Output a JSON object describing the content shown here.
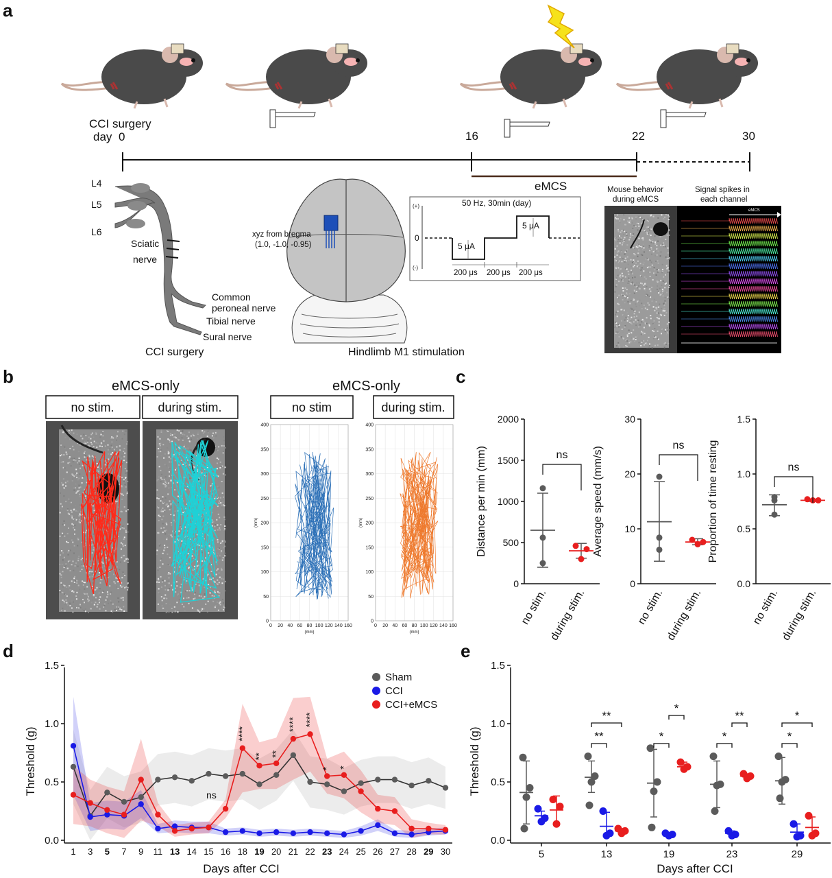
{
  "panel_a": {
    "letter": "a",
    "timeline": {
      "start_label_1": "CCI surgery",
      "start_label_2": "day",
      "days": [
        "0",
        "16",
        "22",
        "30"
      ],
      "emcs_label": "eMCS"
    },
    "nerve": {
      "roots": [
        "L4",
        "L5",
        "L6"
      ],
      "sciatic_1": "Sciatic",
      "sciatic_2": "nerve",
      "common_1": "Common",
      "common_2": "peroneal nerve",
      "tibial": "Tibial nerve",
      "sural": "Sural nerve",
      "caption": "CCI surgery"
    },
    "brain": {
      "coord_1": "xyz from bregma",
      "coord_2": "(1.0, -1.0, -0.95)",
      "caption": "Hindlimb M1 stimulation"
    },
    "pulse": {
      "title": "50 Hz, 30min (day)",
      "plus": "(+)",
      "zero": "0",
      "minus": "(-)",
      "amp_neg": "5 μA",
      "amp_pos": "5 μA",
      "durations": [
        "200 μs",
        "200 μs",
        "200 μs"
      ]
    },
    "behavior": {
      "title_1": "Mouse behavior",
      "title_2": "during eMCS",
      "spikes_1": "Signal spikes in",
      "spikes_2": "each channel",
      "emcs_tag": "eMCS"
    }
  },
  "panel_b": {
    "letter": "b",
    "left_title": "eMCS-only",
    "right_title": "eMCS-only",
    "photo_labels": [
      "no stim.",
      "during stim."
    ],
    "track_labels": [
      "no stim",
      "during stim."
    ],
    "track_axes": {
      "y_label": "(mm)",
      "x_label": "(mm)",
      "y_ticks": [
        "0",
        "50",
        "100",
        "150",
        "200",
        "250",
        "300",
        "350",
        "400"
      ],
      "x_ticks": [
        "0",
        "20",
        "40",
        "60",
        "80",
        "100",
        "120",
        "140",
        "160"
      ]
    },
    "colors": {
      "no_stim": "#2f72b8",
      "during_stim": "#ee7a2e",
      "photo_nostim": "#ff2a1a",
      "photo_stim": "#1fd1d6"
    }
  },
  "panel_c": {
    "letter": "c",
    "sig": "ns",
    "x_categories": [
      "no stim.",
      "during stim."
    ],
    "charts": [
      {
        "ylabel": "Distance per min (mm)",
        "ylim": [
          0,
          2000
        ],
        "yticks": [
          "0",
          "500",
          "1000",
          "1500",
          "2000"
        ],
        "no_stim": {
          "points": [
            1160,
            560,
            250
          ],
          "mean": 650,
          "sd": [
            200,
            1100
          ]
        },
        "during_stim": {
          "points": [
            460,
            420,
            300
          ],
          "mean": 400,
          "sd": [
            310,
            490
          ]
        }
      },
      {
        "ylabel": "Average speed (mm/s)",
        "ylim": [
          0,
          30
        ],
        "yticks": [
          "0",
          "10",
          "20",
          "30"
        ],
        "no_stim": {
          "points": [
            19.5,
            8.4,
            6.2
          ],
          "mean": 11.3,
          "sd": [
            4.1,
            18.6
          ]
        },
        "during_stim": {
          "points": [
            8.0,
            7.6,
            7.2
          ],
          "mean": 7.6,
          "sd": [
            7.1,
            8.2
          ]
        }
      },
      {
        "ylabel": "Proportion of time resting",
        "ylim": [
          0,
          1.5
        ],
        "yticks": [
          "0.0",
          "0.5",
          "1.0",
          "1.5"
        ],
        "no_stim": {
          "points": [
            0.79,
            0.76,
            0.63
          ],
          "mean": 0.72,
          "sd": [
            0.62,
            0.81
          ]
        },
        "during_stim": {
          "points": [
            0.77,
            0.76,
            0.76
          ],
          "mean": 0.76,
          "sd": [
            0.75,
            0.77
          ]
        }
      }
    ]
  },
  "panel_d": {
    "letter": "d",
    "ylabel": "Threshold (g)",
    "xlabel": "Days after CCI",
    "yticks": [
      "0.0",
      "0.5",
      "1.0",
      "1.5"
    ],
    "legend": [
      "Sham",
      "CCI",
      "CCI+eMCS"
    ],
    "ns_label": "ns"
  },
  "panel_e": {
    "letter": "e",
    "ylabel": "Threshold (g)",
    "xlabel": "Days after CCI",
    "yticks": [
      "0.0",
      "0.5",
      "1.0",
      "1.5"
    ],
    "days": [
      "5",
      "13",
      "19",
      "23",
      "29"
    ]
  },
  "chart_data": [
    {
      "type": "line",
      "panel": "d",
      "ylabel": "Threshold (g)",
      "xlabel": "Days after CCI",
      "ylim": [
        0,
        1.5
      ],
      "x": [
        1,
        3,
        5,
        7,
        9,
        11,
        13,
        14,
        15,
        16,
        18,
        19,
        20,
        21,
        22,
        23,
        24,
        25,
        26,
        27,
        28,
        29,
        30
      ],
      "x_bold": [
        5,
        13,
        19,
        23,
        29
      ],
      "legend_position": "top-right",
      "series": [
        {
          "name": "Sham",
          "color": "#5b5b5b",
          "values": [
            0.63,
            0.21,
            0.41,
            0.33,
            0.37,
            0.52,
            0.54,
            0.51,
            0.57,
            0.55,
            0.57,
            0.48,
            0.56,
            0.73,
            0.5,
            0.48,
            0.42,
            0.49,
            0.52,
            0.52,
            0.47,
            0.51,
            0.45
          ],
          "band": [
            0.32,
            0.22,
            0.22,
            0.22,
            0.22,
            0.22,
            0.22,
            0.22,
            0.22,
            0.22,
            0.22,
            0.22,
            0.22,
            0.22,
            0.22,
            0.22,
            0.2,
            0.2,
            0.2,
            0.2,
            0.2,
            0.2,
            0.18
          ]
        },
        {
          "name": "CCI",
          "color": "#1a1ae6",
          "values": [
            0.81,
            0.2,
            0.22,
            0.21,
            0.31,
            0.1,
            0.12,
            0.11,
            0.11,
            0.07,
            0.08,
            0.06,
            0.07,
            0.06,
            0.07,
            0.06,
            0.05,
            0.08,
            0.13,
            0.06,
            0.05,
            0.07,
            0.08
          ],
          "band": [
            0.42,
            0.12,
            0.12,
            0.12,
            0.12,
            0.04,
            0.05,
            0.05,
            0.05,
            0.03,
            0.03,
            0.03,
            0.03,
            0.03,
            0.03,
            0.03,
            0.03,
            0.04,
            0.05,
            0.03,
            0.03,
            0.03,
            0.03
          ]
        },
        {
          "name": "CCI+eMCS",
          "color": "#e81e1e",
          "values": [
            0.39,
            0.32,
            0.26,
            0.22,
            0.52,
            0.22,
            0.08,
            0.1,
            0.11,
            0.27,
            0.79,
            0.64,
            0.66,
            0.87,
            0.91,
            0.55,
            0.56,
            0.42,
            0.27,
            0.25,
            0.1,
            0.1,
            0.09
          ],
          "band": [
            0.25,
            0.2,
            0.2,
            0.2,
            0.35,
            0.1,
            0.05,
            0.05,
            0.05,
            0.08,
            0.38,
            0.2,
            0.22,
            0.35,
            0.32,
            0.15,
            0.2,
            0.18,
            0.12,
            0.12,
            0.08,
            0.05,
            0.04
          ]
        }
      ],
      "annotations": [
        {
          "x": 18,
          "text": "****"
        },
        {
          "x": 19,
          "text": "**"
        },
        {
          "x": 20,
          "text": "**"
        },
        {
          "x": 21,
          "text": "****"
        },
        {
          "x": 22,
          "text": "****"
        },
        {
          "x": 23,
          "text": "*"
        },
        {
          "x": 24,
          "text": "*"
        },
        {
          "x": 15,
          "text": "ns"
        }
      ]
    },
    {
      "type": "scatter",
      "panel": "e",
      "ylabel": "Threshold (g)",
      "xlabel": "Days after CCI",
      "ylim": [
        0,
        1.5
      ],
      "categories": [
        "5",
        "13",
        "19",
        "23",
        "29"
      ],
      "series": [
        {
          "name": "Sham",
          "color": "#5b5b5b",
          "points": [
            [
              0.71,
              0.45,
              0.37,
              0.1
            ],
            [
              0.72,
              0.55,
              0.5,
              0.3
            ],
            [
              0.79,
              0.5,
              0.42,
              0.11
            ],
            [
              0.72,
              0.48,
              0.47,
              0.25
            ],
            [
              0.72,
              0.52,
              0.5,
              0.36
            ]
          ],
          "mean": [
            0.41,
            0.54,
            0.49,
            0.48,
            0.51
          ],
          "sd": [
            [
              0.14,
              0.68
            ],
            [
              0.41,
              0.68
            ],
            [
              0.2,
              0.78
            ],
            [
              0.28,
              0.68
            ],
            [
              0.31,
              0.71
            ]
          ]
        },
        {
          "name": "CCI",
          "color": "#1a1ae6",
          "points": [
            [
              0.27,
              0.19,
              0.16
            ],
            [
              0.25,
              0.06,
              0.04
            ],
            [
              0.06,
              0.05,
              0.04
            ],
            [
              0.08,
              0.05,
              0.04
            ],
            [
              0.14,
              0.04,
              0.03
            ]
          ],
          "mean": [
            0.21,
            0.12,
            0.05,
            0.06,
            0.07
          ],
          "sd": [
            [
              0.17,
              0.25
            ],
            [
              0.05,
              0.24
            ],
            [
              0.04,
              0.06
            ],
            [
              0.04,
              0.08
            ],
            [
              0.02,
              0.14
            ]
          ]
        },
        {
          "name": "CCI+eMCS",
          "color": "#e81e1e",
          "points": [
            [
              0.35,
              0.29,
              0.14
            ],
            [
              0.1,
              0.08,
              0.06
            ],
            [
              0.67,
              0.63,
              0.61
            ],
            [
              0.57,
              0.55,
              0.53
            ],
            [
              0.21,
              0.06,
              0.04
            ]
          ],
          "mean": [
            0.26,
            0.08,
            0.63,
            0.55,
            0.11
          ],
          "sd": [
            [
              0.13,
              0.38
            ],
            [
              0.06,
              0.1
            ],
            [
              0.6,
              0.67
            ],
            [
              0.53,
              0.57
            ],
            [
              0.04,
              0.2
            ]
          ]
        }
      ],
      "annotations": [
        {
          "day": "13",
          "pair": "sham-cci",
          "text": "**"
        },
        {
          "day": "13",
          "pair": "sham-emcs",
          "text": "**"
        },
        {
          "day": "19",
          "pair": "sham-cci",
          "text": "*"
        },
        {
          "day": "19",
          "pair": "cci-emcs",
          "text": "*"
        },
        {
          "day": "23",
          "pair": "sham-cci",
          "text": "*"
        },
        {
          "day": "23",
          "pair": "cci-emcs",
          "text": "**"
        },
        {
          "day": "29",
          "pair": "sham-cci",
          "text": "*"
        },
        {
          "day": "29",
          "pair": "sham-emcs",
          "text": "*"
        }
      ]
    }
  ]
}
